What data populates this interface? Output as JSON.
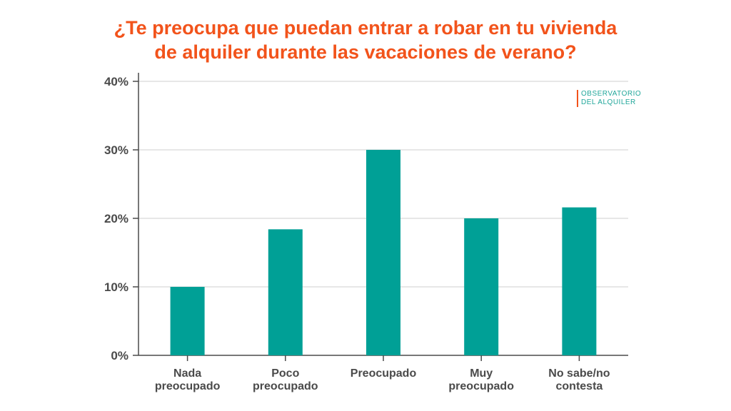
{
  "title_lines": [
    "¿Te preocupa que puedan entrar a robar en tu vivienda",
    "de alquiler durante las vacaciones de verano?"
  ],
  "logo": {
    "line1": "OBSERVATORIO",
    "line2": "DEL ALQUILER"
  },
  "colors": {
    "title": "#f2531b",
    "bar": "#00a096",
    "axis": "#4a4a4a",
    "grid": "#cfcfcf"
  },
  "chart_data": {
    "type": "bar",
    "categories": [
      [
        "Nada",
        "preocupado"
      ],
      [
        "Poco",
        "preocupado"
      ],
      [
        "Preocupado"
      ],
      [
        "Muy",
        "preocupado"
      ],
      [
        "No sabe/no",
        "contesta"
      ]
    ],
    "values": [
      10,
      18.4,
      30,
      20,
      21.6
    ],
    "ylim": [
      0,
      40
    ],
    "yticks": [
      0,
      10,
      20,
      30,
      40
    ],
    "ytick_labels": [
      "0%",
      "10%",
      "20%",
      "30%",
      "40%"
    ],
    "grid": true,
    "xlabel": "",
    "ylabel": ""
  }
}
